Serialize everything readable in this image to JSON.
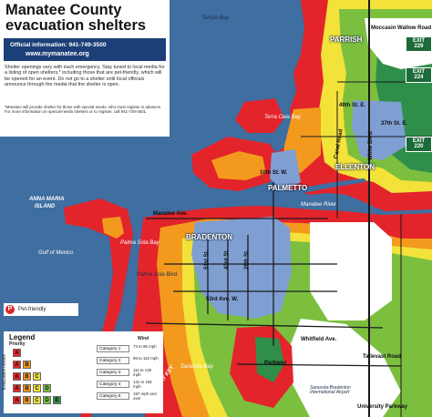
{
  "header": {
    "title_line1": "Manatee County",
    "title_line2": "evacuation shelters",
    "official_info": "Official information: 941-749-3500",
    "website": "www.mymanatee.org",
    "note": "Shelter openings vary with each emergency. Stay tuned to local media for a listing of open shelters,* including those that are pet-friendly, which will be opened for an event. Do not go to a shelter until local officials announce through the media that the shelter is open.",
    "footnote": "*Manatee will provide shelter for those with special needs, who must register in advance. For more information on special-needs shelters or to register, call 941-749-4501."
  },
  "pet_legend": {
    "icon": "P",
    "label": "Pet-friendly"
  },
  "legend": {
    "title": "Legend",
    "priority_label": "Priority",
    "side_label": "Evacuation levels",
    "levels": [
      [
        "A"
      ],
      [
        "A",
        "B"
      ],
      [
        "A",
        "B",
        "C"
      ],
      [
        "A",
        "B",
        "C",
        "D"
      ],
      [
        "A",
        "B",
        "C",
        "D",
        "E"
      ]
    ],
    "wind_header": "Wind",
    "categories": [
      {
        "name": "Category 1",
        "wind": "74 to 95 mph"
      },
      {
        "name": "Category 2",
        "wind": "96 to 110 mph"
      },
      {
        "name": "Category 3",
        "wind": "111 to 130 mph"
      },
      {
        "name": "Category 4",
        "wind": "131 to 156 mph"
      },
      {
        "name": "Category 5",
        "wind": "157 mph and over"
      }
    ]
  },
  "level_colors": {
    "A": "#e3242b",
    "B": "#f39a1e",
    "C": "#f2e23a",
    "D": "#7cbf3f",
    "E": "#2f8f4a"
  },
  "map_colors": {
    "water": "#3f6ea0",
    "blue_zone": "#7f9fd3",
    "land": "#ffffff"
  },
  "places": {
    "tampa_bay": "Tampa Bay",
    "terra_ceia_bay": "Terra Ceia Bay",
    "anna_maria": "ANNA MARIA",
    "island": "ISLAND",
    "gulf": "Gulf of Mexico",
    "palma_sola_bay": "Palma Sola Bay",
    "palma_sola_blvd": "Palma Sola Blvd.",
    "sarasota_bay": "Sarasota Bay",
    "manatee_river": "Manatee River",
    "moccasin_wallow": "Moccasin Wallow Road",
    "parrish": "PARRISH",
    "ellenton": "ELLENTON",
    "palmetto": "PALMETTO",
    "bradenton": "BRADENTON",
    "manatee_ave": "Manatee Ave.",
    "street_49": "49th St. E.",
    "street_37": "37th St. E.",
    "street_10": "10th St. W.",
    "street_53": "53rd Ave. W.",
    "street_51": "51st St.",
    "street_43": "43rd St.",
    "street_26": "26th St.",
    "canal_road": "Canal Road",
    "white_blvd": "White Blvd.",
    "tallevast": "Tallevast Road",
    "whitfield": "Whitfield Ave.",
    "university": "University Parkway",
    "airport": "Sarasota-Bradenton International Airport",
    "longboat": "LONGBOAT KEY",
    "parkway": "Parkway"
  },
  "exits": [
    {
      "label": "EXIT 229"
    },
    {
      "label": "EXIT 224"
    },
    {
      "label": "EXIT 220"
    }
  ]
}
